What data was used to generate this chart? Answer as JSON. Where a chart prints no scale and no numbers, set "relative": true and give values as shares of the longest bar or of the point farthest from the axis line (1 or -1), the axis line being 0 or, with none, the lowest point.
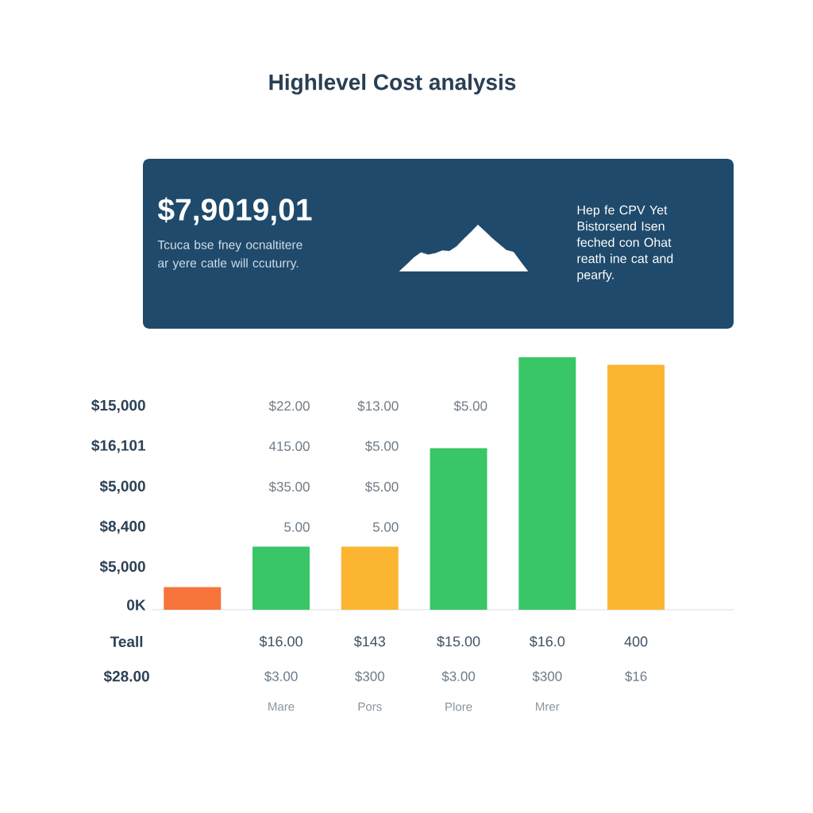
{
  "chart_data": [
    {
      "type": "other",
      "title": "Highlevel Cost analysis",
      "annotations": [
        "$7,9019,01",
        "Tcuca bse fney ocnaltitere ar yere catle will ccuturry.",
        "Hep fe CPV Yet Bistorsend Isen feched con Ohat reath ine cat and pearfy."
      ]
    },
    {
      "type": "area",
      "relative": true,
      "categories": [
        null,
        null,
        null,
        null,
        null,
        null,
        null,
        null,
        null,
        null,
        null,
        null,
        null,
        null,
        null,
        null,
        null,
        null,
        null
      ],
      "values": [
        0,
        0.14,
        0.29,
        0.4,
        0.35,
        0.38,
        0.44,
        0.43,
        0.53,
        0.69,
        0.84,
        1,
        0.86,
        0.71,
        0.58,
        0.45,
        0.41,
        0.2,
        0
      ],
      "color": "#ffffff"
    },
    {
      "type": "bar",
      "relative": true,
      "categories": [
        null,
        null,
        null,
        null,
        null,
        null
      ],
      "values": [
        0.09,
        0.25,
        0.25,
        0.64,
        1,
        0.97
      ],
      "colors": [
        "#f7743b",
        "#38c667",
        "#fbb531",
        "#38c667",
        "#38c667",
        "#fbb531"
      ],
      "annotations": [
        "$15,000",
        "$22.00",
        "$13.00",
        "$5.00",
        "$16,101",
        "415.00",
        "$5.00",
        "$5,000",
        "$35.00",
        "$5.00",
        "$8,400",
        "5.00",
        "5.00",
        "$5,000",
        "0K",
        "Teall",
        "$16.00",
        "$143",
        "$15.00",
        "$16.0",
        "400",
        "$28.00",
        "$3.00",
        "$300",
        "$3.00",
        "$300",
        "$16",
        "Mare",
        "Pors",
        "Plore",
        "Mrer"
      ]
    }
  ]
}
